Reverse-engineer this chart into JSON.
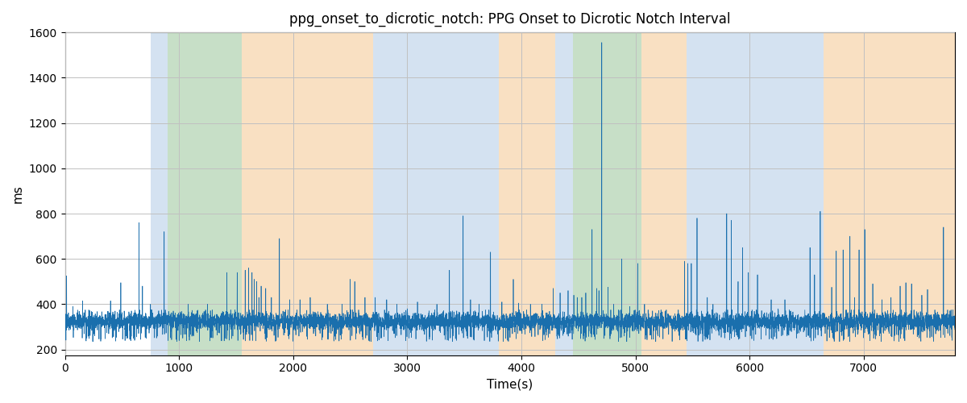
{
  "title": "ppg_onset_to_dicrotic_notch: PPG Onset to Dicrotic Notch Interval",
  "xlabel": "Time(s)",
  "ylabel": "ms",
  "ylim_bottom": 175,
  "ylim_top": 1600,
  "xlim_left": 0,
  "xlim_right": 7800,
  "yticks": [
    200,
    400,
    600,
    800,
    1000,
    1200,
    1400,
    1600
  ],
  "xticks": [
    0,
    1000,
    2000,
    3000,
    4000,
    5000,
    6000,
    7000
  ],
  "line_color": "#1a6fad",
  "grid_color": "#c0c0c0",
  "bg_regions": [
    {
      "xstart": 0,
      "xend": 750,
      "color": "#ffffff",
      "alpha": 1.0
    },
    {
      "xstart": 750,
      "xend": 900,
      "color": "#b8d0e8",
      "alpha": 0.6
    },
    {
      "xstart": 900,
      "xend": 1550,
      "color": "#90c090",
      "alpha": 0.5
    },
    {
      "xstart": 1550,
      "xend": 2700,
      "color": "#f5c890",
      "alpha": 0.55
    },
    {
      "xstart": 2700,
      "xend": 3800,
      "color": "#b8d0e8",
      "alpha": 0.6
    },
    {
      "xstart": 3800,
      "xend": 4300,
      "color": "#f5c890",
      "alpha": 0.55
    },
    {
      "xstart": 4300,
      "xend": 4450,
      "color": "#b8d0e8",
      "alpha": 0.6
    },
    {
      "xstart": 4450,
      "xend": 5050,
      "color": "#90c090",
      "alpha": 0.5
    },
    {
      "xstart": 5050,
      "xend": 5450,
      "color": "#f5c890",
      "alpha": 0.55
    },
    {
      "xstart": 5450,
      "xend": 6650,
      "color": "#b8d0e8",
      "alpha": 0.6
    },
    {
      "xstart": 6650,
      "xend": 7800,
      "color": "#f5c890",
      "alpha": 0.55
    }
  ],
  "seed": 42,
  "n_points": 7800,
  "baseline": 325,
  "noise_std": 20,
  "spikes": [
    [
      15,
      525
    ],
    [
      70,
      390
    ],
    [
      155,
      415
    ],
    [
      240,
      365
    ],
    [
      400,
      415
    ],
    [
      440,
      370
    ],
    [
      490,
      495
    ],
    [
      520,
      370
    ],
    [
      650,
      760
    ],
    [
      680,
      480
    ],
    [
      750,
      400
    ],
    [
      820,
      360
    ],
    [
      870,
      720
    ],
    [
      950,
      370
    ],
    [
      1080,
      400
    ],
    [
      1250,
      400
    ],
    [
      1420,
      540
    ],
    [
      1510,
      540
    ],
    [
      1580,
      550
    ],
    [
      1610,
      560
    ],
    [
      1640,
      540
    ],
    [
      1660,
      510
    ],
    [
      1680,
      500
    ],
    [
      1700,
      430
    ],
    [
      1720,
      480
    ],
    [
      1760,
      470
    ],
    [
      1810,
      430
    ],
    [
      1880,
      690
    ],
    [
      1970,
      420
    ],
    [
      2060,
      420
    ],
    [
      2150,
      430
    ],
    [
      2300,
      400
    ],
    [
      2430,
      400
    ],
    [
      2500,
      510
    ],
    [
      2540,
      500
    ],
    [
      2630,
      430
    ],
    [
      2720,
      430
    ],
    [
      2820,
      420
    ],
    [
      2910,
      400
    ],
    [
      3000,
      380
    ],
    [
      3090,
      410
    ],
    [
      3260,
      400
    ],
    [
      3370,
      550
    ],
    [
      3490,
      790
    ],
    [
      3555,
      420
    ],
    [
      3630,
      400
    ],
    [
      3730,
      630
    ],
    [
      3830,
      410
    ],
    [
      3930,
      510
    ],
    [
      3975,
      405
    ],
    [
      4080,
      400
    ],
    [
      4180,
      400
    ],
    [
      4280,
      470
    ],
    [
      4340,
      450
    ],
    [
      4410,
      460
    ],
    [
      4460,
      440
    ],
    [
      4490,
      430
    ],
    [
      4530,
      430
    ],
    [
      4565,
      450
    ],
    [
      4620,
      730
    ],
    [
      4660,
      470
    ],
    [
      4680,
      460
    ],
    [
      4705,
      1555
    ],
    [
      4760,
      475
    ],
    [
      4810,
      400
    ],
    [
      4880,
      600
    ],
    [
      4950,
      390
    ],
    [
      5020,
      580
    ],
    [
      5080,
      400
    ],
    [
      5260,
      370
    ],
    [
      5430,
      590
    ],
    [
      5460,
      580
    ],
    [
      5490,
      580
    ],
    [
      5540,
      780
    ],
    [
      5580,
      370
    ],
    [
      5630,
      430
    ],
    [
      5680,
      400
    ],
    [
      5800,
      800
    ],
    [
      5840,
      770
    ],
    [
      5900,
      500
    ],
    [
      5940,
      650
    ],
    [
      5990,
      540
    ],
    [
      6070,
      530
    ],
    [
      6190,
      420
    ],
    [
      6250,
      380
    ],
    [
      6310,
      420
    ],
    [
      6360,
      370
    ],
    [
      6530,
      650
    ],
    [
      6570,
      530
    ],
    [
      6620,
      810
    ],
    [
      6720,
      475
    ],
    [
      6760,
      635
    ],
    [
      6820,
      640
    ],
    [
      6880,
      700
    ],
    [
      6920,
      430
    ],
    [
      6960,
      640
    ],
    [
      7010,
      730
    ],
    [
      7080,
      490
    ],
    [
      7160,
      420
    ],
    [
      7240,
      430
    ],
    [
      7320,
      480
    ],
    [
      7370,
      495
    ],
    [
      7420,
      490
    ],
    [
      7510,
      440
    ],
    [
      7560,
      465
    ],
    [
      7700,
      740
    ]
  ]
}
